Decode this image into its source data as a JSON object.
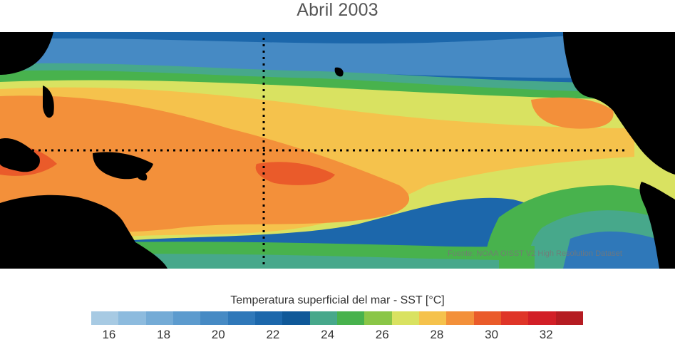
{
  "title": "Abril 2003",
  "credit": "Fuente: NOAA OISST V2 High Resolution Dataset",
  "colorbar": {
    "label": "Temperatura superficial del mar - SST  [°C]",
    "ticks": [
      "16",
      "18",
      "20",
      "22",
      "24",
      "26",
      "28",
      "30",
      "32"
    ],
    "colors": [
      "#a7cae3",
      "#8dbbde",
      "#74abd6",
      "#5c9bce",
      "#468ac4",
      "#2f78b9",
      "#1c67ab",
      "#0f5898",
      "#47a88b",
      "#48b24d",
      "#8ac647",
      "#d9e261",
      "#f5c24c",
      "#f3903a",
      "#ea5b2a",
      "#df3528",
      "#d21f27",
      "#b51c22"
    ]
  },
  "map_colors": {
    "land": "#000000",
    "cool_blue": "#2f78b9",
    "deep_blue": "#1c67ab",
    "teal": "#47a88b",
    "green": "#48b24d",
    "yellow_green": "#d9e261",
    "yellow": "#f5c24c",
    "orange": "#f3903a",
    "red_orange": "#ea5b2a"
  }
}
